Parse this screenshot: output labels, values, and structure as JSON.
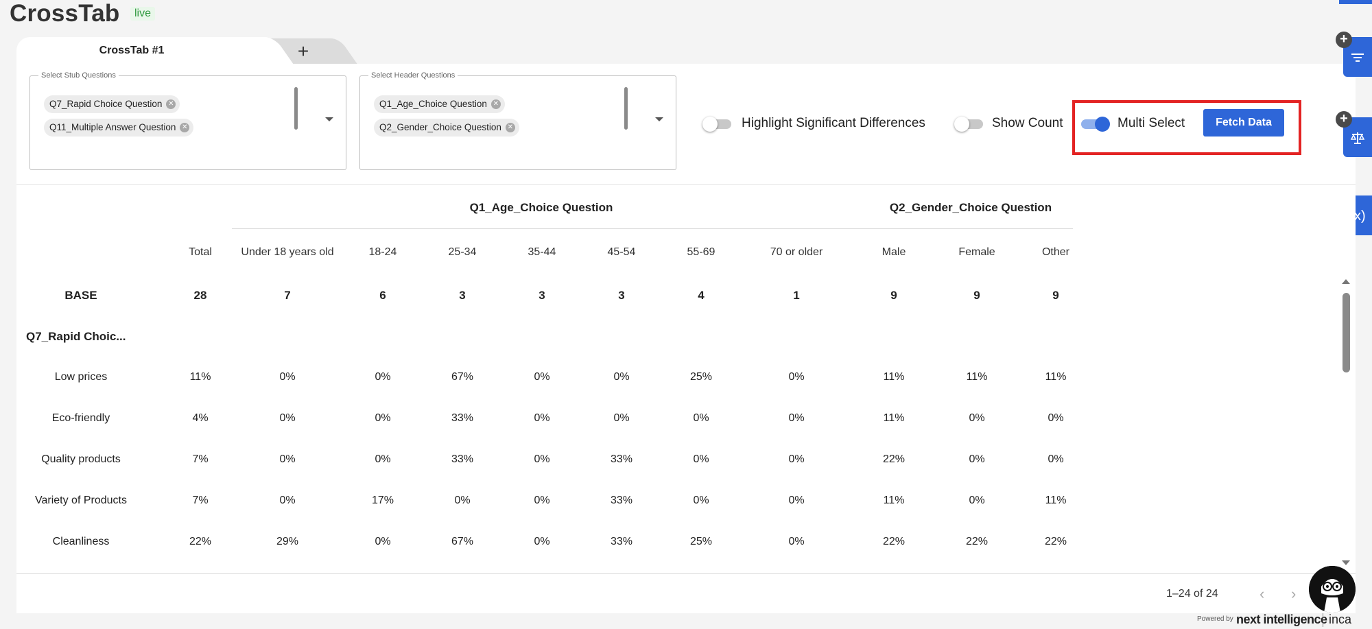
{
  "header": {
    "title": "CrossTab",
    "status": "live"
  },
  "tabs": [
    {
      "label": "CrossTab #1"
    },
    {
      "label": "+"
    }
  ],
  "stub_questions": {
    "legend": "Select Stub Questions",
    "chips": [
      "Q7_Rapid Choice Question",
      "Q11_Multiple Answer Question"
    ]
  },
  "header_questions": {
    "legend": "Select Header Questions",
    "chips": [
      "Q1_Age_Choice Question",
      "Q2_Gender_Choice Question"
    ]
  },
  "toggles": {
    "highlight": {
      "label": "Highlight Significant Differences",
      "on": false
    },
    "show_count": {
      "label": "Show Count",
      "on": false
    },
    "multi_select": {
      "label": "Multi Select",
      "on": true
    }
  },
  "fetch_button": "Fetch Data",
  "table": {
    "groups": [
      "Q1_Age_Choice Question",
      "Q2_Gender_Choice Question"
    ],
    "columns": [
      "Total",
      "Under 18 years old",
      "18-24",
      "25-34",
      "35-44",
      "45-54",
      "55-69",
      "70 or older",
      "Male",
      "Female",
      "Other"
    ],
    "base": {
      "label": "BASE",
      "values": [
        "28",
        "7",
        "6",
        "3",
        "3",
        "3",
        "4",
        "1",
        "9",
        "9",
        "9"
      ]
    },
    "section": "Q7_Rapid Choic...",
    "rows": [
      {
        "label": "Low prices",
        "values": [
          "11%",
          "0%",
          "0%",
          "67%",
          "0%",
          "0%",
          "25%",
          "0%",
          "11%",
          "11%",
          "11%"
        ]
      },
      {
        "label": "Eco-friendly",
        "values": [
          "4%",
          "0%",
          "0%",
          "33%",
          "0%",
          "0%",
          "0%",
          "0%",
          "11%",
          "0%",
          "0%"
        ]
      },
      {
        "label": "Quality products",
        "values": [
          "7%",
          "0%",
          "0%",
          "33%",
          "0%",
          "33%",
          "0%",
          "0%",
          "22%",
          "0%",
          "0%"
        ]
      },
      {
        "label": "Variety of Products",
        "values": [
          "7%",
          "0%",
          "17%",
          "0%",
          "0%",
          "33%",
          "0%",
          "0%",
          "11%",
          "0%",
          "11%"
        ]
      },
      {
        "label": "Cleanliness",
        "values": [
          "22%",
          "29%",
          "0%",
          "67%",
          "0%",
          "33%",
          "25%",
          "0%",
          "22%",
          "22%",
          "22%"
        ]
      }
    ]
  },
  "pagination": {
    "text": "1–24 of 24",
    "prev": "‹",
    "next": "›"
  },
  "side_icons": [
    "filter-icon",
    "balance-scale-icon",
    "function-variable-icon"
  ],
  "footer": {
    "powered_by": "Powered by",
    "brand": "next intelligence",
    "brand2": "inca"
  },
  "colors": {
    "accent": "#2e66d8",
    "highlight": "#e32323",
    "live": "#2e9a3e"
  }
}
